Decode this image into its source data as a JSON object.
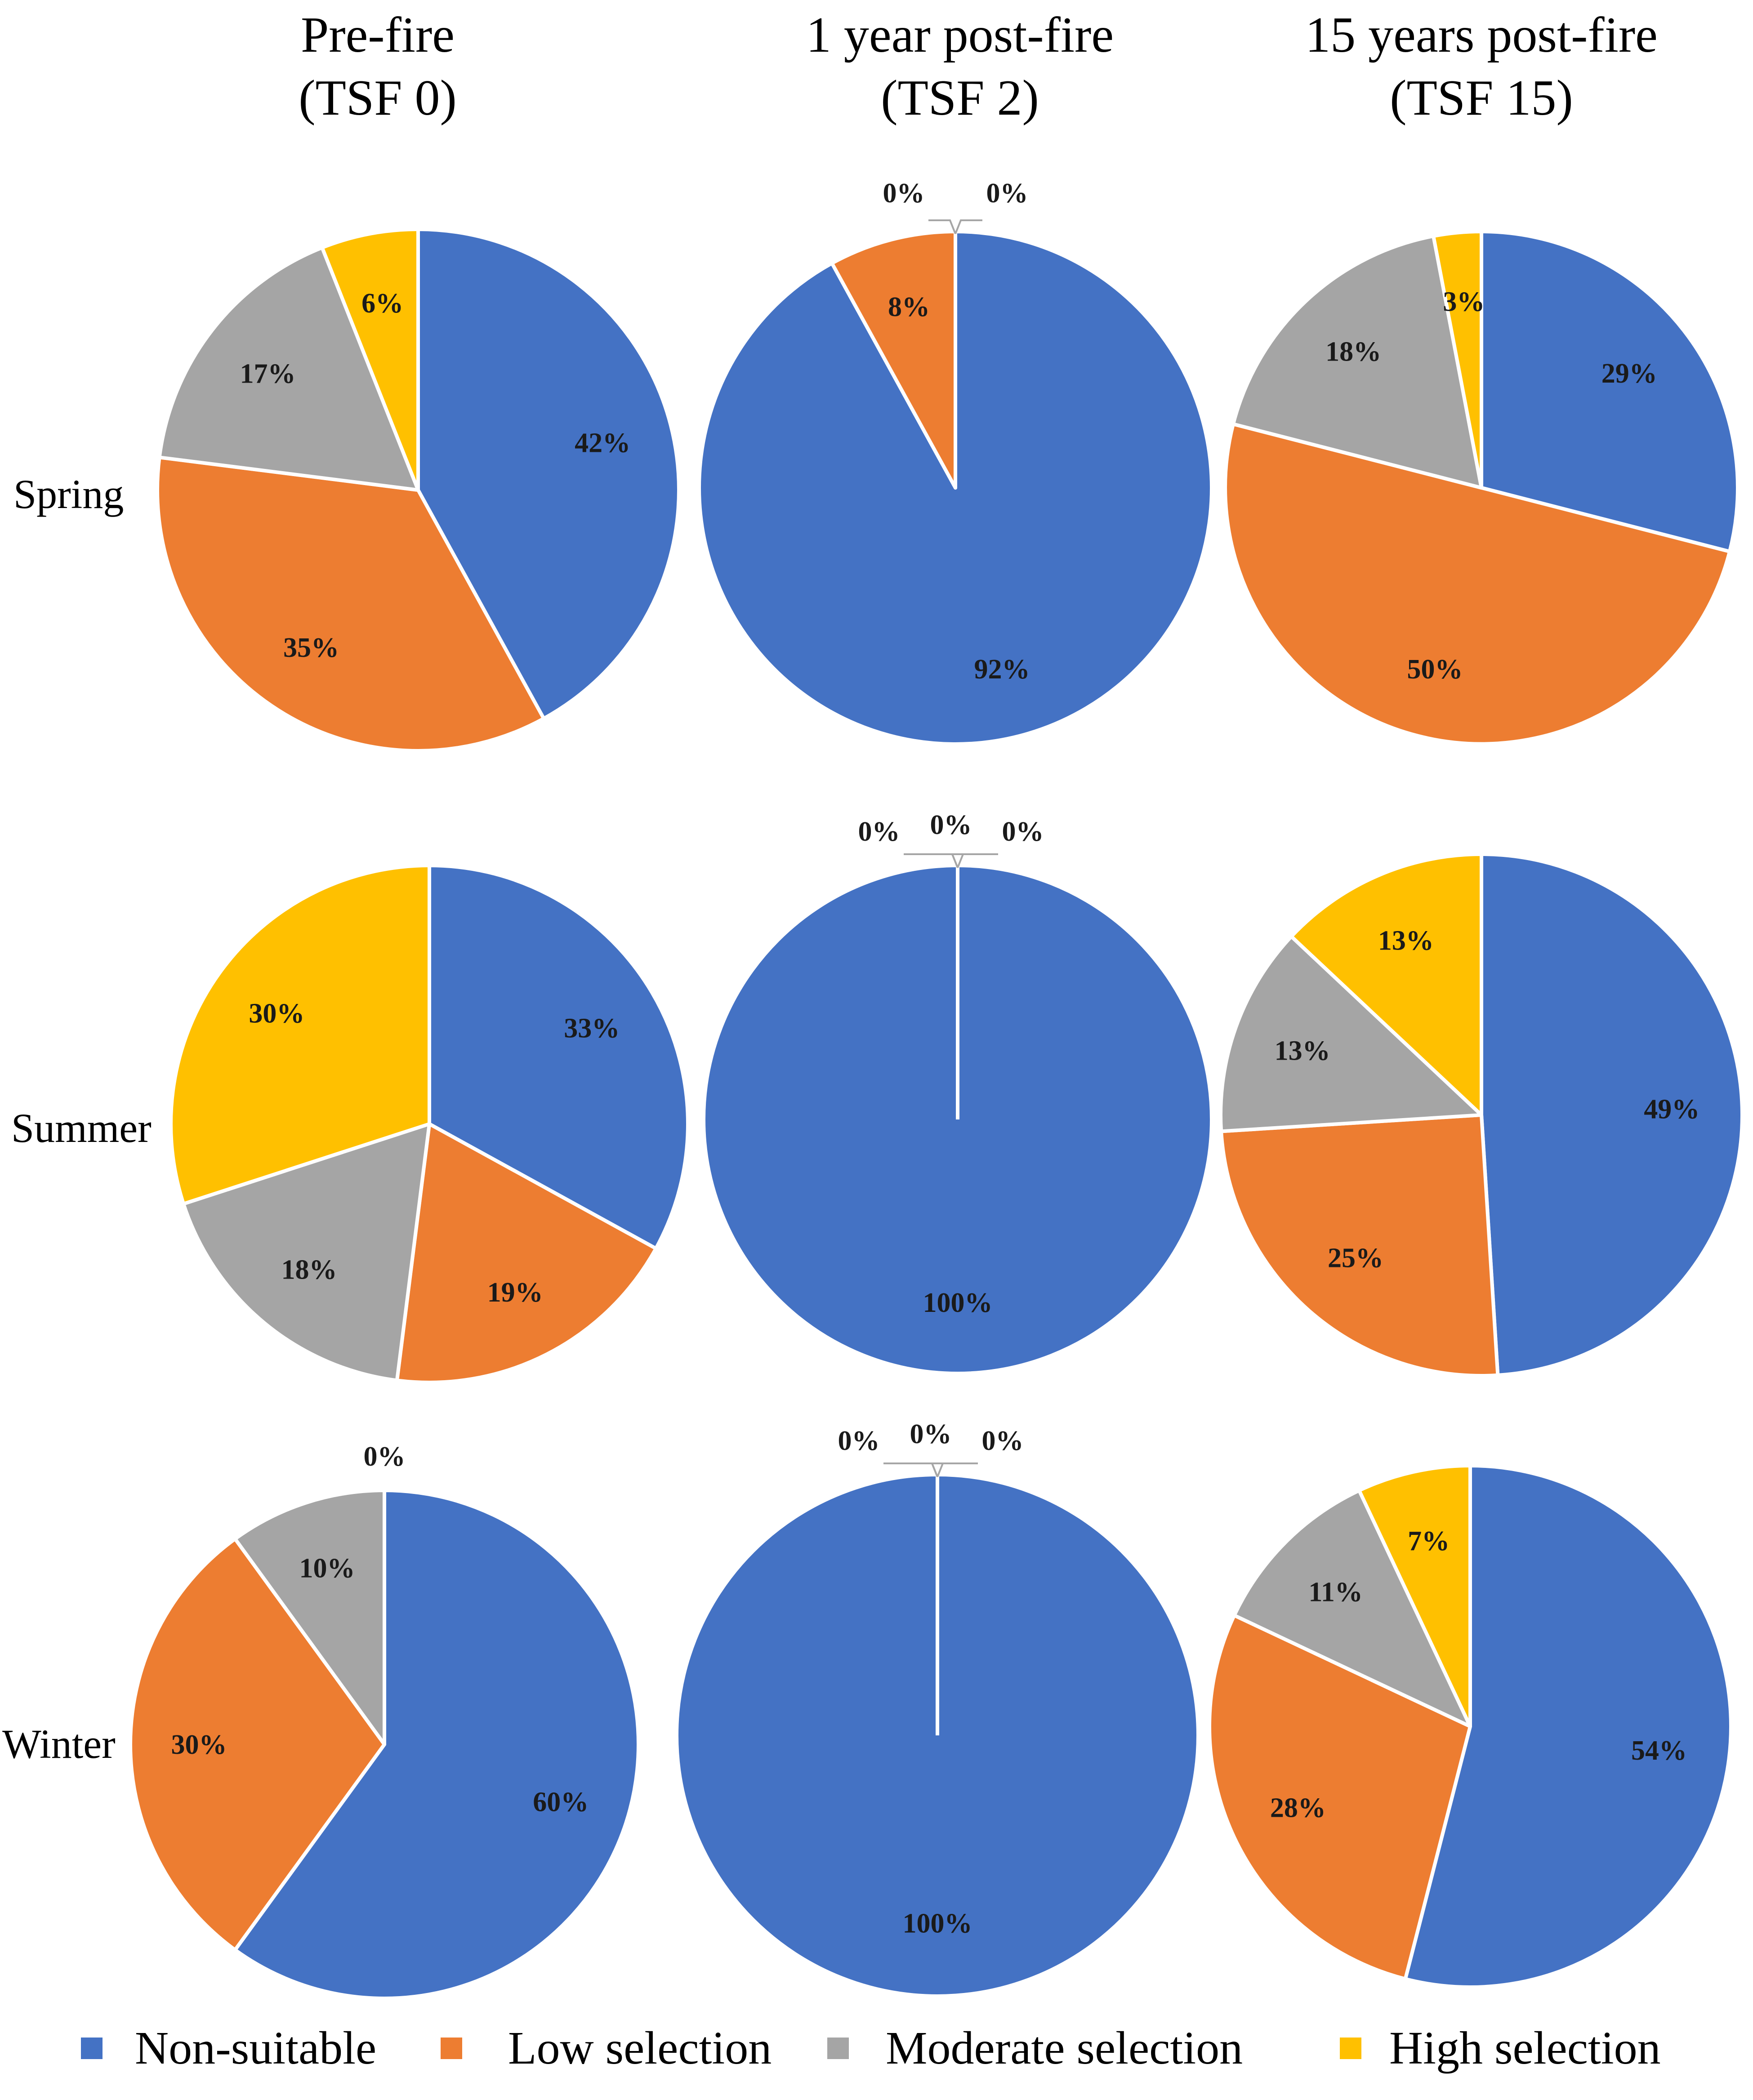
{
  "chart_data": {
    "type": "pie",
    "columns": [
      {
        "title": "Pre-fire",
        "subtitle": "(TSF 0)"
      },
      {
        "title": "1 year post-fire",
        "subtitle": "(TSF 2)"
      },
      {
        "title": "15 years post-fire",
        "subtitle": "(TSF 15)"
      }
    ],
    "rows": [
      "Spring",
      "Summer",
      "Winter"
    ],
    "categories": [
      "Non-suitable",
      "Low selection",
      "Moderate selection",
      "High selection"
    ],
    "colors": [
      "#4472C4",
      "#ED7D31",
      "#A5A5A5",
      "#FFC000"
    ],
    "charts": [
      {
        "row": "Spring",
        "column": "Pre-fire",
        "values": [
          42,
          35,
          17,
          6
        ],
        "labels": [
          "42%",
          "35%",
          "17%",
          "6%"
        ]
      },
      {
        "row": "Spring",
        "column": "1 year post-fire",
        "values": [
          92,
          8,
          0,
          0
        ],
        "labels": [
          "92%",
          "8%",
          "0%",
          "0%"
        ]
      },
      {
        "row": "Spring",
        "column": "15 years post-fire",
        "values": [
          29,
          50,
          18,
          3
        ],
        "labels": [
          "29%",
          "50%",
          "18%",
          "3%"
        ]
      },
      {
        "row": "Summer",
        "column": "Pre-fire",
        "values": [
          33,
          19,
          18,
          30
        ],
        "labels": [
          "33%",
          "19%",
          "18%",
          "30%"
        ]
      },
      {
        "row": "Summer",
        "column": "1 year post-fire",
        "values": [
          100,
          0,
          0,
          0
        ],
        "labels": [
          "100%",
          "0%",
          "0%",
          "0%"
        ]
      },
      {
        "row": "Summer",
        "column": "15 years post-fire",
        "values": [
          49,
          25,
          13,
          13
        ],
        "labels": [
          "49%",
          "25%",
          "13%",
          "13%"
        ]
      },
      {
        "row": "Winter",
        "column": "Pre-fire",
        "values": [
          60,
          30,
          10,
          0
        ],
        "labels": [
          "60%",
          "30%",
          "10%",
          "0%"
        ]
      },
      {
        "row": "Winter",
        "column": "1 year post-fire",
        "values": [
          100,
          0,
          0,
          0
        ],
        "labels": [
          "100%",
          "0%",
          "0%",
          "0%"
        ]
      },
      {
        "row": "Winter",
        "column": "15 years post-fire",
        "values": [
          54,
          28,
          11,
          7
        ],
        "labels": [
          "54%",
          "28%",
          "11%",
          "7%"
        ]
      }
    ],
    "legend": {
      "position": "bottom"
    }
  }
}
